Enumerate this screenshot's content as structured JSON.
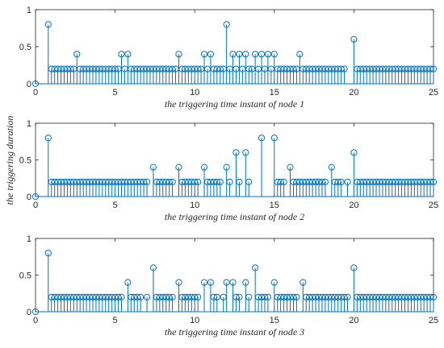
{
  "figure": {
    "shared_ylabel": "the triggering duration",
    "stem_color": "#0072BD",
    "axis_color": "#262626"
  },
  "chart_data": [
    {
      "type": "stem",
      "xlabel": "the triggering time instant of node 1",
      "xlim": [
        0,
        25
      ],
      "ylim": [
        0,
        1
      ],
      "xticks": [
        "0",
        "5",
        "10",
        "15",
        "20",
        "25"
      ],
      "yticks": [
        "0",
        "0.5",
        "1"
      ],
      "grid": false,
      "points": [
        [
          0,
          0
        ],
        [
          0.8,
          0.8
        ],
        [
          1.0,
          0.2
        ],
        [
          1.2,
          0.2
        ],
        [
          1.4,
          0.2
        ],
        [
          1.6,
          0.2
        ],
        [
          1.8,
          0.2
        ],
        [
          2.0,
          0.2
        ],
        [
          2.2,
          0.2
        ],
        [
          2.4,
          0.2
        ],
        [
          2.6,
          0.4
        ],
        [
          2.8,
          0.2
        ],
        [
          3.0,
          0.2
        ],
        [
          3.2,
          0.2
        ],
        [
          3.4,
          0.2
        ],
        [
          3.6,
          0.2
        ],
        [
          3.8,
          0.2
        ],
        [
          4.0,
          0.2
        ],
        [
          4.2,
          0.2
        ],
        [
          4.4,
          0.2
        ],
        [
          4.6,
          0.2
        ],
        [
          4.8,
          0.2
        ],
        [
          5.0,
          0.2
        ],
        [
          5.2,
          0.2
        ],
        [
          5.4,
          0.4
        ],
        [
          5.6,
          0.2
        ],
        [
          5.8,
          0.4
        ],
        [
          6.0,
          0.2
        ],
        [
          6.2,
          0.2
        ],
        [
          6.4,
          0.2
        ],
        [
          6.6,
          0.2
        ],
        [
          6.8,
          0.2
        ],
        [
          7.0,
          0.2
        ],
        [
          7.2,
          0.2
        ],
        [
          7.4,
          0.2
        ],
        [
          7.6,
          0.2
        ],
        [
          7.8,
          0.2
        ],
        [
          8.0,
          0.2
        ],
        [
          8.2,
          0.2
        ],
        [
          8.4,
          0.2
        ],
        [
          8.6,
          0.2
        ],
        [
          8.8,
          0.2
        ],
        [
          9.0,
          0.4
        ],
        [
          9.2,
          0.2
        ],
        [
          9.4,
          0.2
        ],
        [
          9.6,
          0.2
        ],
        [
          9.8,
          0.2
        ],
        [
          10.0,
          0.2
        ],
        [
          10.2,
          0.2
        ],
        [
          10.4,
          0.2
        ],
        [
          10.6,
          0.4
        ],
        [
          10.8,
          0.2
        ],
        [
          11.0,
          0.4
        ],
        [
          11.2,
          0.2
        ],
        [
          11.4,
          0.2
        ],
        [
          11.6,
          0.2
        ],
        [
          11.8,
          0.2
        ],
        [
          12.0,
          0.8
        ],
        [
          12.2,
          0.2
        ],
        [
          12.4,
          0.4
        ],
        [
          12.6,
          0.2
        ],
        [
          12.8,
          0.4
        ],
        [
          13.0,
          0.2
        ],
        [
          13.2,
          0.4
        ],
        [
          13.4,
          0.2
        ],
        [
          13.6,
          0.2
        ],
        [
          13.8,
          0.4
        ],
        [
          14.0,
          0.2
        ],
        [
          14.2,
          0.4
        ],
        [
          14.4,
          0.2
        ],
        [
          14.6,
          0.4
        ],
        [
          14.8,
          0.2
        ],
        [
          15.0,
          0.4
        ],
        [
          15.2,
          0.2
        ],
        [
          15.4,
          0.2
        ],
        [
          15.6,
          0.2
        ],
        [
          15.8,
          0.2
        ],
        [
          16.0,
          0.2
        ],
        [
          16.2,
          0.2
        ],
        [
          16.4,
          0.2
        ],
        [
          16.6,
          0.4
        ],
        [
          16.8,
          0.2
        ],
        [
          17.0,
          0.2
        ],
        [
          17.2,
          0.2
        ],
        [
          17.4,
          0.2
        ],
        [
          17.6,
          0.2
        ],
        [
          17.8,
          0.2
        ],
        [
          18.0,
          0.2
        ],
        [
          18.2,
          0.2
        ],
        [
          18.4,
          0.2
        ],
        [
          18.6,
          0.2
        ],
        [
          18.8,
          0.2
        ],
        [
          19.0,
          0.2
        ],
        [
          19.2,
          0.2
        ],
        [
          19.4,
          0.2
        ],
        [
          20.0,
          0.6
        ],
        [
          20.2,
          0.2
        ],
        [
          20.4,
          0.2
        ],
        [
          20.6,
          0.2
        ],
        [
          20.8,
          0.2
        ],
        [
          21.0,
          0.2
        ],
        [
          21.2,
          0.2
        ],
        [
          21.4,
          0.2
        ],
        [
          21.6,
          0.2
        ],
        [
          21.8,
          0.2
        ],
        [
          22.0,
          0.2
        ],
        [
          22.2,
          0.2
        ],
        [
          22.4,
          0.2
        ],
        [
          22.6,
          0.2
        ],
        [
          22.8,
          0.2
        ],
        [
          23.0,
          0.2
        ],
        [
          23.2,
          0.2
        ],
        [
          23.4,
          0.2
        ],
        [
          23.6,
          0.2
        ],
        [
          23.8,
          0.2
        ],
        [
          24.0,
          0.2
        ],
        [
          24.2,
          0.2
        ],
        [
          24.4,
          0.2
        ],
        [
          24.6,
          0.2
        ],
        [
          24.8,
          0.2
        ],
        [
          25.0,
          0.2
        ]
      ]
    },
    {
      "type": "stem",
      "xlabel": "the triggering time instant of node 2",
      "xlim": [
        0,
        25
      ],
      "ylim": [
        0,
        1
      ],
      "xticks": [
        "0",
        "5",
        "10",
        "15",
        "20",
        "25"
      ],
      "yticks": [
        "0",
        "0.5",
        "1"
      ],
      "grid": false,
      "points": [
        [
          0,
          0
        ],
        [
          0.8,
          0.8
        ],
        [
          1.0,
          0.2
        ],
        [
          1.2,
          0.2
        ],
        [
          1.4,
          0.2
        ],
        [
          1.6,
          0.2
        ],
        [
          1.8,
          0.2
        ],
        [
          2.0,
          0.2
        ],
        [
          2.2,
          0.2
        ],
        [
          2.4,
          0.2
        ],
        [
          2.6,
          0.2
        ],
        [
          2.8,
          0.2
        ],
        [
          3.0,
          0.2
        ],
        [
          3.2,
          0.2
        ],
        [
          3.4,
          0.2
        ],
        [
          3.6,
          0.2
        ],
        [
          3.8,
          0.2
        ],
        [
          4.0,
          0.2
        ],
        [
          4.2,
          0.2
        ],
        [
          4.4,
          0.2
        ],
        [
          4.6,
          0.2
        ],
        [
          4.8,
          0.2
        ],
        [
          5.0,
          0.2
        ],
        [
          5.2,
          0.2
        ],
        [
          5.4,
          0.2
        ],
        [
          5.6,
          0.2
        ],
        [
          5.8,
          0.2
        ],
        [
          6.0,
          0.2
        ],
        [
          6.2,
          0.2
        ],
        [
          6.4,
          0.2
        ],
        [
          6.6,
          0.2
        ],
        [
          6.8,
          0.2
        ],
        [
          7.0,
          0.2
        ],
        [
          7.4,
          0.4
        ],
        [
          7.6,
          0.2
        ],
        [
          7.8,
          0.2
        ],
        [
          8.0,
          0.2
        ],
        [
          8.2,
          0.2
        ],
        [
          8.4,
          0.2
        ],
        [
          8.6,
          0.2
        ],
        [
          9.0,
          0.4
        ],
        [
          9.2,
          0.2
        ],
        [
          9.4,
          0.2
        ],
        [
          9.6,
          0.2
        ],
        [
          9.8,
          0.2
        ],
        [
          10.0,
          0.2
        ],
        [
          10.2,
          0.2
        ],
        [
          10.6,
          0.4
        ],
        [
          10.8,
          0.2
        ],
        [
          11.0,
          0.2
        ],
        [
          11.2,
          0.2
        ],
        [
          11.4,
          0.2
        ],
        [
          11.6,
          0.2
        ],
        [
          12.0,
          0.4
        ],
        [
          12.2,
          0.2
        ],
        [
          12.6,
          0.6
        ],
        [
          12.8,
          0.2
        ],
        [
          13.2,
          0.6
        ],
        [
          13.4,
          0.2
        ],
        [
          14.2,
          0.8
        ],
        [
          15.0,
          0.8
        ],
        [
          15.2,
          0.2
        ],
        [
          15.4,
          0.2
        ],
        [
          15.6,
          0.2
        ],
        [
          16.0,
          0.4
        ],
        [
          16.2,
          0.2
        ],
        [
          16.4,
          0.2
        ],
        [
          16.6,
          0.2
        ],
        [
          16.8,
          0.2
        ],
        [
          17.0,
          0.2
        ],
        [
          17.2,
          0.2
        ],
        [
          17.4,
          0.2
        ],
        [
          17.6,
          0.2
        ],
        [
          17.8,
          0.2
        ],
        [
          18.0,
          0.2
        ],
        [
          18.2,
          0.2
        ],
        [
          18.6,
          0.4
        ],
        [
          18.8,
          0.2
        ],
        [
          19.0,
          0.2
        ],
        [
          19.2,
          0.2
        ],
        [
          19.6,
          0.2
        ],
        [
          20.0,
          0.6
        ],
        [
          20.2,
          0.2
        ],
        [
          20.4,
          0.2
        ],
        [
          20.6,
          0.2
        ],
        [
          20.8,
          0.2
        ],
        [
          21.0,
          0.2
        ],
        [
          21.2,
          0.2
        ],
        [
          21.4,
          0.2
        ],
        [
          21.6,
          0.2
        ],
        [
          21.8,
          0.2
        ],
        [
          22.0,
          0.2
        ],
        [
          22.2,
          0.2
        ],
        [
          22.4,
          0.2
        ],
        [
          22.6,
          0.2
        ],
        [
          22.8,
          0.2
        ],
        [
          23.0,
          0.2
        ],
        [
          23.2,
          0.2
        ],
        [
          23.4,
          0.2
        ],
        [
          23.6,
          0.2
        ],
        [
          23.8,
          0.2
        ],
        [
          24.0,
          0.2
        ],
        [
          24.2,
          0.2
        ],
        [
          24.4,
          0.2
        ],
        [
          24.6,
          0.2
        ],
        [
          24.8,
          0.2
        ],
        [
          25.0,
          0.2
        ]
      ]
    },
    {
      "type": "stem",
      "xlabel": "the triggering time instant of node 3",
      "xlim": [
        0,
        25
      ],
      "ylim": [
        0,
        1
      ],
      "xticks": [
        "0",
        "5",
        "10",
        "15",
        "20",
        "25"
      ],
      "yticks": [
        "0",
        "0.5",
        "1"
      ],
      "grid": false,
      "points": [
        [
          0,
          0
        ],
        [
          0.8,
          0.8
        ],
        [
          1.0,
          0.2
        ],
        [
          1.2,
          0.2
        ],
        [
          1.4,
          0.2
        ],
        [
          1.6,
          0.2
        ],
        [
          1.8,
          0.2
        ],
        [
          2.0,
          0.2
        ],
        [
          2.2,
          0.2
        ],
        [
          2.4,
          0.2
        ],
        [
          2.6,
          0.2
        ],
        [
          2.8,
          0.2
        ],
        [
          3.0,
          0.2
        ],
        [
          3.2,
          0.2
        ],
        [
          3.4,
          0.2
        ],
        [
          3.6,
          0.2
        ],
        [
          3.8,
          0.2
        ],
        [
          4.0,
          0.2
        ],
        [
          4.2,
          0.2
        ],
        [
          4.4,
          0.2
        ],
        [
          4.6,
          0.2
        ],
        [
          4.8,
          0.2
        ],
        [
          5.0,
          0.2
        ],
        [
          5.2,
          0.2
        ],
        [
          5.4,
          0.2
        ],
        [
          5.8,
          0.4
        ],
        [
          6.0,
          0.2
        ],
        [
          6.2,
          0.2
        ],
        [
          6.4,
          0.2
        ],
        [
          6.6,
          0.2
        ],
        [
          7.0,
          0.2
        ],
        [
          7.4,
          0.6
        ],
        [
          7.6,
          0.2
        ],
        [
          7.8,
          0.2
        ],
        [
          8.0,
          0.2
        ],
        [
          8.2,
          0.2
        ],
        [
          8.4,
          0.2
        ],
        [
          8.6,
          0.2
        ],
        [
          9.0,
          0.4
        ],
        [
          9.2,
          0.2
        ],
        [
          9.4,
          0.2
        ],
        [
          9.6,
          0.2
        ],
        [
          9.8,
          0.2
        ],
        [
          10.0,
          0.2
        ],
        [
          10.2,
          0.2
        ],
        [
          10.6,
          0.4
        ],
        [
          11.0,
          0.4
        ],
        [
          11.2,
          0.2
        ],
        [
          11.4,
          0.2
        ],
        [
          11.8,
          0.2
        ],
        [
          12.0,
          0.4
        ],
        [
          12.4,
          0.4
        ],
        [
          12.6,
          0.2
        ],
        [
          12.8,
          0.2
        ],
        [
          13.2,
          0.4
        ],
        [
          13.4,
          0.2
        ],
        [
          13.8,
          0.6
        ],
        [
          14.0,
          0.2
        ],
        [
          14.2,
          0.2
        ],
        [
          14.4,
          0.2
        ],
        [
          14.6,
          0.2
        ],
        [
          15.0,
          0.4
        ],
        [
          15.2,
          0.2
        ],
        [
          15.4,
          0.2
        ],
        [
          15.6,
          0.2
        ],
        [
          15.8,
          0.2
        ],
        [
          16.0,
          0.2
        ],
        [
          16.2,
          0.2
        ],
        [
          16.4,
          0.2
        ],
        [
          16.8,
          0.4
        ],
        [
          17.0,
          0.2
        ],
        [
          17.2,
          0.2
        ],
        [
          17.4,
          0.2
        ],
        [
          17.6,
          0.2
        ],
        [
          17.8,
          0.2
        ],
        [
          18.0,
          0.2
        ],
        [
          18.2,
          0.2
        ],
        [
          18.4,
          0.2
        ],
        [
          18.6,
          0.2
        ],
        [
          18.8,
          0.2
        ],
        [
          19.0,
          0.2
        ],
        [
          19.2,
          0.2
        ],
        [
          19.4,
          0.2
        ],
        [
          19.6,
          0.2
        ],
        [
          20.0,
          0.6
        ],
        [
          20.2,
          0.2
        ],
        [
          20.4,
          0.2
        ],
        [
          20.6,
          0.2
        ],
        [
          20.8,
          0.2
        ],
        [
          21.0,
          0.2
        ],
        [
          21.2,
          0.2
        ],
        [
          21.4,
          0.2
        ],
        [
          21.6,
          0.2
        ],
        [
          21.8,
          0.2
        ],
        [
          22.0,
          0.2
        ],
        [
          22.2,
          0.2
        ],
        [
          22.4,
          0.2
        ],
        [
          22.6,
          0.2
        ],
        [
          22.8,
          0.2
        ],
        [
          23.0,
          0.2
        ],
        [
          23.2,
          0.2
        ],
        [
          23.4,
          0.2
        ],
        [
          23.6,
          0.2
        ],
        [
          23.8,
          0.2
        ],
        [
          24.0,
          0.2
        ],
        [
          24.2,
          0.2
        ],
        [
          24.4,
          0.2
        ],
        [
          24.6,
          0.2
        ],
        [
          24.8,
          0.2
        ],
        [
          25.0,
          0.2
        ]
      ]
    }
  ]
}
